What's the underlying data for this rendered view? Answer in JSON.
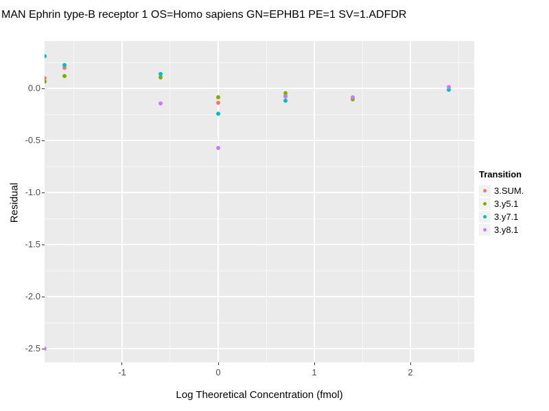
{
  "title": "MAN Ephrin type-B receptor 1 OS=Homo sapiens GN=EPHB1 PE=1 SV=1.ADFDR",
  "chart_data": {
    "type": "scatter",
    "title": "MAN Ephrin type-B receptor 1 OS=Homo sapiens GN=EPHB1 PE=1 SV=1.ADFDR",
    "xlabel": "Log Theoretical Concentration (fmol)",
    "ylabel": "Residual",
    "xlim": [
      -1.807,
      2.664
    ],
    "ylim": [
      -2.63,
      0.454
    ],
    "x_major_ticks": [
      -1,
      0,
      1,
      2
    ],
    "x_tick_labels": [
      "-1",
      "0",
      "1",
      "2"
    ],
    "x_minor_ticks": [
      -1.5,
      -0.5,
      0.5,
      1.5,
      2.5
    ],
    "y_major_ticks": [
      0,
      -0.5,
      -1,
      -1.5,
      -2,
      -2.5
    ],
    "y_tick_labels": [
      "0.0",
      "-0.5",
      "-1.0",
      "-1.5",
      "-2.0",
      "-2.5"
    ],
    "y_minor_ticks": [
      0.25,
      -0.25,
      -0.75,
      -1.25,
      -1.75,
      -2.25
    ],
    "grid": true,
    "grid_color": "#FFFFFF",
    "panel_bg": "#EBEBEB",
    "legend_title": "Transition",
    "legend_position": "right",
    "series": [
      {
        "name": "3.SUM.",
        "color": "#F8766D",
        "points": [
          [
            -1.81,
            0.1
          ],
          [
            -1.6,
            0.2
          ],
          [
            0.0,
            -0.14
          ],
          [
            0.7,
            -0.075
          ]
        ]
      },
      {
        "name": "3.y5.1",
        "color": "#7CAE00",
        "points": [
          [
            -1.81,
            0.065
          ],
          [
            -1.6,
            0.12
          ],
          [
            -0.6,
            0.105
          ],
          [
            0.0,
            -0.085
          ],
          [
            0.7,
            -0.045
          ],
          [
            1.4,
            -0.105
          ]
        ]
      },
      {
        "name": "3.y7.1",
        "color": "#00BFC4",
        "points": [
          [
            -1.81,
            0.31
          ],
          [
            -1.6,
            0.225
          ],
          [
            -0.6,
            0.14
          ],
          [
            0.0,
            -0.245
          ],
          [
            0.7,
            -0.115
          ],
          [
            2.4,
            -0.01
          ]
        ]
      },
      {
        "name": "3.y8.1",
        "color": "#C77CFF",
        "points": [
          [
            -1.81,
            -2.5
          ],
          [
            -0.6,
            -0.145
          ],
          [
            0.0,
            -0.57
          ],
          [
            0.7,
            -0.08
          ],
          [
            1.4,
            -0.085
          ],
          [
            2.4,
            0.015
          ]
        ]
      }
    ]
  }
}
